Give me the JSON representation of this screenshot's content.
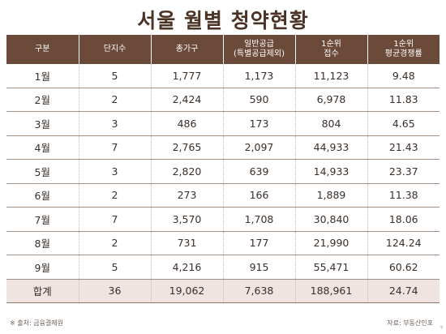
{
  "title": "서울 월별 청약현황",
  "headers": [
    [
      "구분"
    ],
    [
      "단지수"
    ],
    [
      "총가구"
    ],
    [
      "일반공급",
      "(특별공급제외)"
    ],
    [
      "1순위",
      "접수"
    ],
    [
      "1순위",
      "평균경쟁률"
    ]
  ],
  "rows": [
    [
      "1월",
      "5",
      "1,777",
      "1,173",
      "11,123",
      "9.48"
    ],
    [
      "2월",
      "2",
      "2,424",
      "590",
      "6,978",
      "11.83"
    ],
    [
      "3월",
      "3",
      "486",
      "173",
      "804",
      "4.65"
    ],
    [
      "4월",
      "7",
      "2,765",
      "2,097",
      "44,933",
      "21.43"
    ],
    [
      "5월",
      "3",
      "2,820",
      "639",
      "14,933",
      "23.37"
    ],
    [
      "6월",
      "2",
      "273",
      "166",
      "1,889",
      "11.38"
    ],
    [
      "7월",
      "7",
      "3,570",
      "1,708",
      "30,840",
      "18.06"
    ],
    [
      "8월",
      "2",
      "731",
      "177",
      "21,990",
      "124.24"
    ],
    [
      "9월",
      "5",
      "4,216",
      "915",
      "55,471",
      "60.62"
    ],
    [
      "합계",
      "36",
      "19,062",
      "7,638",
      "188,961",
      "24.74"
    ]
  ],
  "footer": {
    "source": "※ 출처: 금융결제원",
    "credit": "자료: 부동산인포",
    "corner_mark": "⁴⁄"
  },
  "colors": {
    "header_bg": "#6b4a3a",
    "total_row_bg": "#efe4df",
    "title_color": "#4b3426"
  }
}
